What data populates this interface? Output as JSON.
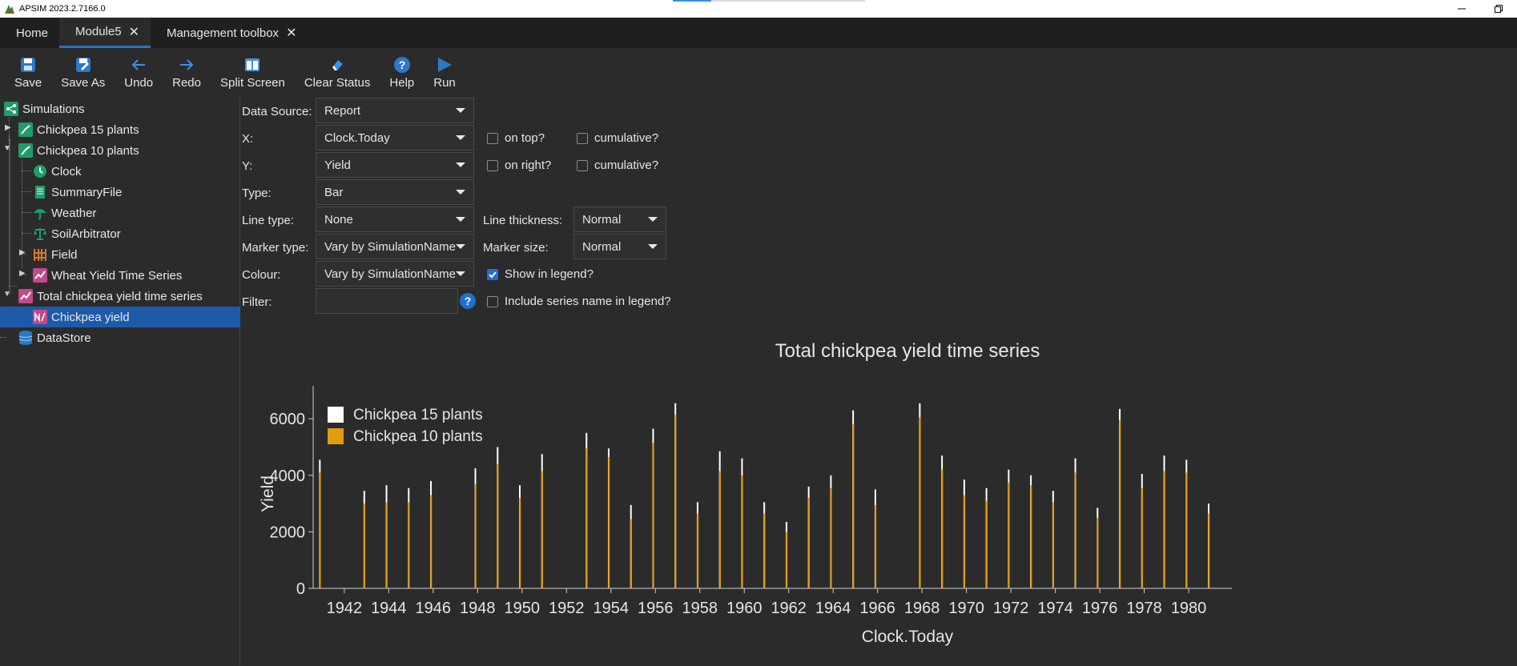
{
  "window": {
    "title": "APSIM 2023.2.7166.0",
    "progress": 0.2
  },
  "tabs": [
    {
      "label": "Home",
      "closable": false,
      "active": false
    },
    {
      "label": "Module5",
      "closable": true,
      "active": true
    },
    {
      "label": "Management toolbox",
      "closable": true,
      "active": false
    }
  ],
  "toolbar": {
    "save": "Save",
    "save_as": "Save As",
    "undo": "Undo",
    "redo": "Redo",
    "split_screen": "Split Screen",
    "clear_status": "Clear Status",
    "help": "Help",
    "run": "Run"
  },
  "tree": {
    "simulations": "Simulations",
    "chickpea15": "Chickpea 15 plants",
    "chickpea10": "Chickpea 10 plants",
    "clock": "Clock",
    "summary": "SummaryFile",
    "weather": "Weather",
    "soil_arbitrator": "SoilArbitrator",
    "field": "Field",
    "wheat_series": "Wheat Yield Time Series",
    "total_series": "Total chickpea yield time series",
    "chickpea_yield": "Chickpea yield",
    "datastore": "DataStore"
  },
  "form": {
    "data_source_label": "Data Source:",
    "data_source": "Report",
    "x_label": "X:",
    "x_value": "Clock.Today",
    "y_label": "Y:",
    "y_value": "Yield",
    "type_label": "Type:",
    "type_value": "Bar",
    "line_type_label": "Line type:",
    "line_type": "None",
    "marker_type_label": "Marker type:",
    "marker_type": "Vary by SimulationName",
    "colour_label": "Colour:",
    "colour": "Vary by SimulationName",
    "filter_label": "Filter:",
    "line_thickness_label": "Line thickness:",
    "line_thickness": "Normal",
    "marker_size_label": "Marker size:",
    "marker_size": "Normal",
    "on_top": "on top?",
    "on_right": "on right?",
    "cumulative_x": "cumulative?",
    "cumulative_y": "cumulative?",
    "show_in_legend": "Show in legend?",
    "include_series_name": "Include series name in legend?"
  },
  "chart_data": {
    "type": "bar",
    "title": "Total chickpea yield time series",
    "xlabel": "Clock.Today",
    "ylabel": "Yield",
    "xlim": [
      1940.6,
      1981.8
    ],
    "ylim": [
      0,
      6600
    ],
    "x_ticks": [
      "1942",
      "1944",
      "1946",
      "1948",
      "1950",
      "1952",
      "1954",
      "1956",
      "1958",
      "1960",
      "1962",
      "1964",
      "1966",
      "1968",
      "1970",
      "1972",
      "1974",
      "1976",
      "1978",
      "1980"
    ],
    "y_ticks": [
      "0",
      "2000",
      "4000",
      "6000"
    ],
    "legend_position": "top-left",
    "series": [
      {
        "name": "Chickpea 15 plants",
        "color": "#ffffff",
        "x": [
          1940.9,
          1942.9,
          1943.9,
          1944.9,
          1945.9,
          1947.9,
          1948.9,
          1949.9,
          1950.9,
          1952.9,
          1953.9,
          1954.9,
          1955.9,
          1956.9,
          1957.9,
          1958.9,
          1959.9,
          1960.9,
          1961.9,
          1962.9,
          1963.9,
          1964.9,
          1965.9,
          1967.9,
          1968.9,
          1969.9,
          1970.9,
          1971.9,
          1972.9,
          1973.9,
          1974.9,
          1975.9,
          1976.9,
          1977.9,
          1978.9,
          1979.9,
          1980.9
        ],
        "values": [
          4550,
          3450,
          3650,
          3550,
          3800,
          4250,
          5000,
          3650,
          4750,
          5500,
          4950,
          2950,
          5650,
          6550,
          3050,
          4850,
          4600,
          3050,
          2350,
          3600,
          4000,
          6300,
          3500,
          6550,
          4700,
          3850,
          3550,
          4200,
          4000,
          3450,
          4600,
          2850,
          6350,
          4050,
          4700,
          4550,
          3000
        ]
      },
      {
        "name": "Chickpea 10 plants",
        "color": "#e39a0e",
        "x": [
          1940.9,
          1942.9,
          1943.9,
          1944.9,
          1945.9,
          1947.9,
          1948.9,
          1949.9,
          1950.9,
          1952.9,
          1953.9,
          1954.9,
          1955.9,
          1956.9,
          1957.9,
          1958.9,
          1959.9,
          1960.9,
          1961.9,
          1962.9,
          1963.9,
          1964.9,
          1965.9,
          1967.9,
          1968.9,
          1969.9,
          1970.9,
          1971.9,
          1972.9,
          1973.9,
          1974.9,
          1975.9,
          1976.9,
          1977.9,
          1978.9,
          1979.9,
          1980.9
        ],
        "values": [
          4100,
          3000,
          3050,
          3050,
          3300,
          3700,
          4400,
          3200,
          4150,
          4950,
          4650,
          2450,
          5150,
          6150,
          2650,
          4150,
          4000,
          2650,
          2000,
          3200,
          3550,
          5800,
          2950,
          6050,
          4200,
          3300,
          3100,
          3750,
          3650,
          3050,
          4100,
          2500,
          5950,
          3550,
          4150,
          4100,
          2650
        ]
      }
    ]
  }
}
